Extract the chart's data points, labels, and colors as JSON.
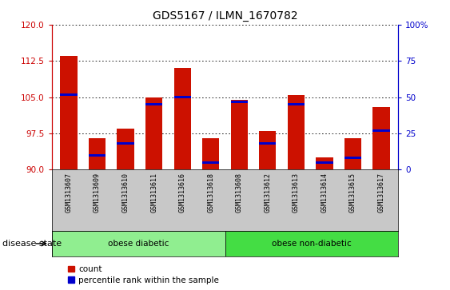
{
  "title": "GDS5167 / ILMN_1670782",
  "samples": [
    "GSM1313607",
    "GSM1313609",
    "GSM1313610",
    "GSM1313611",
    "GSM1313616",
    "GSM1313618",
    "GSM1313608",
    "GSM1313612",
    "GSM1313613",
    "GSM1313614",
    "GSM1313615",
    "GSM1313617"
  ],
  "red_values": [
    113.5,
    96.5,
    98.5,
    105.0,
    111.0,
    96.5,
    104.5,
    98.0,
    105.5,
    92.5,
    96.5,
    103.0
  ],
  "blue_values": [
    105.5,
    93.0,
    95.5,
    103.5,
    105.0,
    91.5,
    104.0,
    95.5,
    103.5,
    91.5,
    92.5,
    98.0
  ],
  "ymin": 90,
  "ymax": 120,
  "yticks_left": [
    90,
    97.5,
    105,
    112.5,
    120
  ],
  "right_tick_positions": [
    90,
    97.5,
    105,
    112.5,
    120
  ],
  "right_tick_labels": [
    "0",
    "25",
    "50",
    "75",
    "100%"
  ],
  "groups": [
    {
      "label": "obese diabetic",
      "start": 0,
      "end": 5,
      "color": "#90EE90"
    },
    {
      "label": "obese non-diabetic",
      "start": 6,
      "end": 11,
      "color": "#44DD44"
    }
  ],
  "group_label": "disease state",
  "bar_color": "#CC1100",
  "blue_color": "#0000CC",
  "tick_bg_color": "#C8C8C8",
  "plot_bg": "#FFFFFF",
  "legend_items": [
    "count",
    "percentile rank within the sample"
  ],
  "left_axis_color": "#CC0000",
  "right_axis_color": "#0000CC"
}
